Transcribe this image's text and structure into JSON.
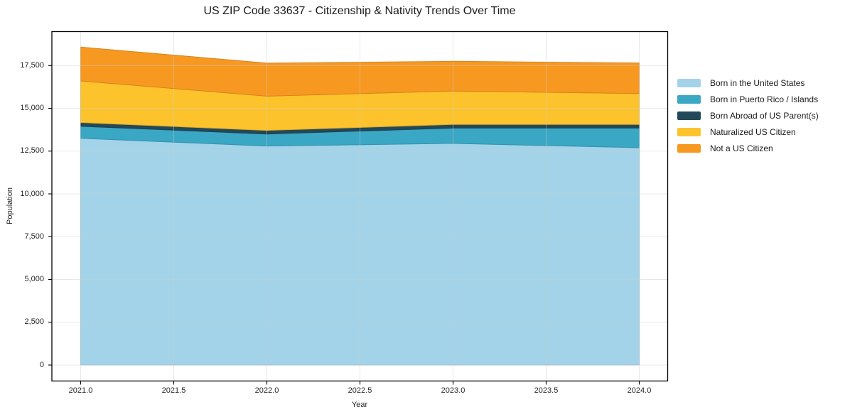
{
  "window": {
    "background": "#ffffff"
  },
  "styles": {
    "spine_color": "#000000",
    "grid_color": "#cccccc",
    "tick_color": "#000000",
    "text_color": "#262626"
  },
  "chart_data": {
    "type": "area",
    "stacked": true,
    "title": "US ZIP Code 33637 - Citizenship & Nativity Trends Over Time",
    "xlabel": "Year",
    "ylabel": "Population",
    "x": [
      2021,
      2022,
      2023,
      2024
    ],
    "series": [
      {
        "name": "Born in the United States",
        "color": "#a3d3e8",
        "values": [
          13250,
          12800,
          12950,
          12700
        ]
      },
      {
        "name": "Born in Puerto Rico / Islands",
        "color": "#3aa7c4",
        "values": [
          700,
          700,
          900,
          1150
        ]
      },
      {
        "name": "Born Abroad of US Parent(s)",
        "color": "#23485a",
        "values": [
          220,
          210,
          210,
          210
        ]
      },
      {
        "name": "Naturalized US Citizen",
        "color": "#fcc32d",
        "values": [
          2430,
          2000,
          1950,
          1800
        ]
      },
      {
        "name": "Not a US Citizen",
        "color": "#f79821",
        "values": [
          1980,
          1930,
          1740,
          1790
        ]
      }
    ],
    "stack_totals": [
      18580,
      17640,
      17750,
      17650
    ],
    "xlim": [
      2020.85,
      2024.15
    ],
    "ylim": [
      -930,
      19470
    ],
    "grid": true,
    "legend_position": "right",
    "x_ticks": [
      {
        "value": 2021.0,
        "label": "2021.0"
      },
      {
        "value": 2021.5,
        "label": "2021.5"
      },
      {
        "value": 2022.0,
        "label": "2022.0"
      },
      {
        "value": 2022.5,
        "label": "2022.5"
      },
      {
        "value": 2023.0,
        "label": "2023.0"
      },
      {
        "value": 2023.5,
        "label": "2023.5"
      },
      {
        "value": 2024.0,
        "label": "2024.0"
      }
    ],
    "y_ticks": [
      {
        "value": 0,
        "label": "0"
      },
      {
        "value": 2500,
        "label": "2,500"
      },
      {
        "value": 5000,
        "label": "5,000"
      },
      {
        "value": 7500,
        "label": "7,500"
      },
      {
        "value": 10000,
        "label": "10,000"
      },
      {
        "value": 12500,
        "label": "12,500"
      },
      {
        "value": 15000,
        "label": "15,000"
      },
      {
        "value": 17500,
        "label": "17,500"
      }
    ]
  }
}
